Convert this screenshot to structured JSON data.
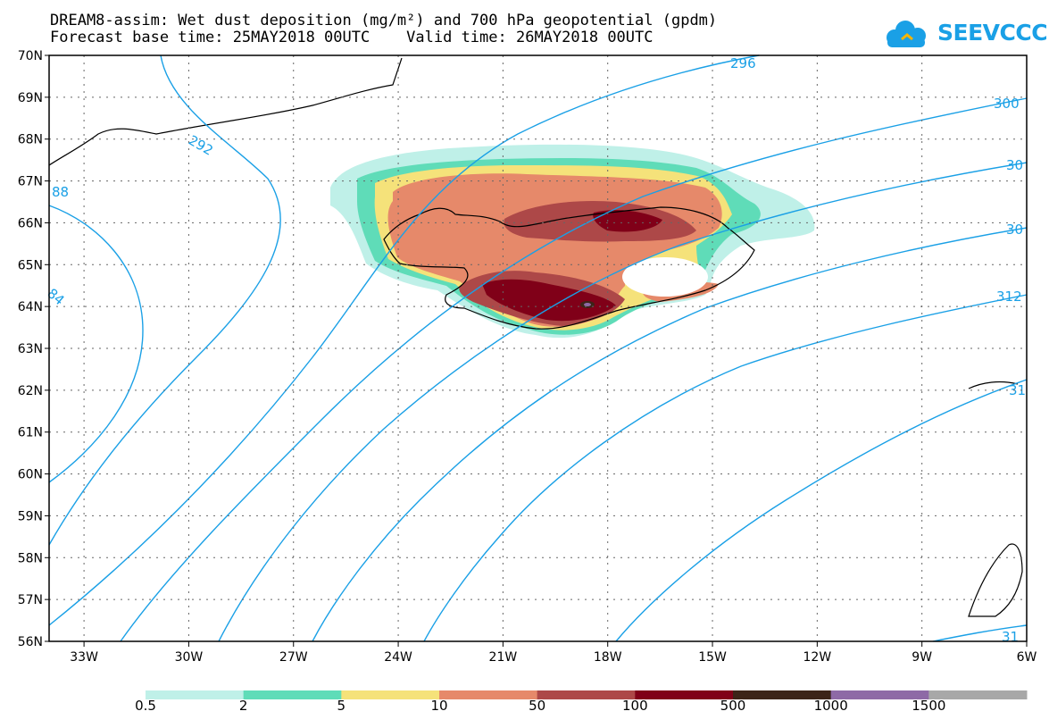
{
  "title_line1": "DREAM8-assim: Wet dust deposition (mg/m²) and 700 hPa geopotential (gpdm)",
  "title_line2": "Forecast base time: 25MAY2018 00UTC    Valid time: 26MAY2018 00UTC",
  "logo_text": "SEEVCCC",
  "logo_icon": "cloud-icon",
  "map": {
    "lon_range": [
      -34,
      -6
    ],
    "lat_range": [
      56,
      70
    ],
    "lon_ticks": [
      "33W",
      "30W",
      "27W",
      "24W",
      "21W",
      "18W",
      "15W",
      "12W",
      "9W",
      "6W"
    ],
    "lat_ticks": [
      "70N",
      "69N",
      "68N",
      "67N",
      "66N",
      "65N",
      "64N",
      "63N",
      "62N",
      "61N",
      "60N",
      "59N",
      "58N",
      "57N",
      "56N"
    ],
    "contour_color": "#1aa0e6",
    "contour_labels": [
      "296",
      "300",
      "30",
      "30",
      "312",
      "31",
      "31",
      "292",
      "88",
      "84"
    ]
  },
  "colorbar": {
    "colors": [
      "#bff0e8",
      "#5fdcb8",
      "#f5e27a",
      "#e6896a",
      "#ad4848",
      "#800018",
      "#3c2418",
      "#8e6aa6",
      "#a8a8a8"
    ],
    "labels": [
      "0.5",
      "2",
      "5",
      "10",
      "50",
      "100",
      "500",
      "1000",
      "1500"
    ]
  }
}
